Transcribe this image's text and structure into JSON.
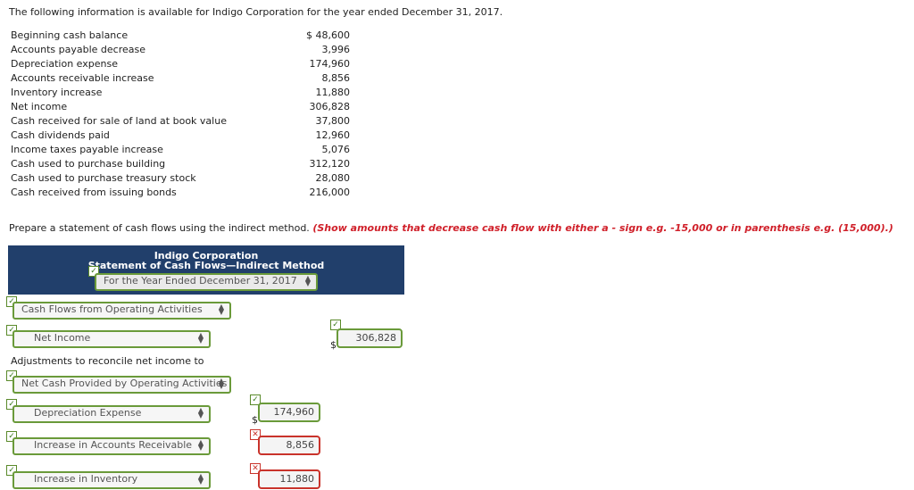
{
  "intro": "The following information is available for Indigo Corporation for the year ended December 31, 2017.",
  "info_rows": [
    {
      "label": "Beginning cash balance",
      "value": "$ 48,600"
    },
    {
      "label": "Accounts payable decrease",
      "value": "3,996"
    },
    {
      "label": "Depreciation expense",
      "value": "174,960"
    },
    {
      "label": "Accounts receivable increase",
      "value": "8,856"
    },
    {
      "label": "Inventory increase",
      "value": "11,880"
    },
    {
      "label": "Net income",
      "value": "306,828"
    },
    {
      "label": "Cash received for sale of land at book value",
      "value": "37,800"
    },
    {
      "label": "Cash dividends paid",
      "value": "12,960"
    },
    {
      "label": "Income taxes payable increase",
      "value": "5,076"
    },
    {
      "label": "Cash used to purchase building",
      "value": "312,120"
    },
    {
      "label": "Cash used to purchase treasury stock",
      "value": "28,080"
    },
    {
      "label": "Cash received from issuing bonds",
      "value": "216,000"
    }
  ],
  "prepare": {
    "text": "Prepare a statement of cash flows using the indirect method.",
    "note": "(Show amounts that decrease cash flow with either a - sign e.g. -15,000 or in parenthesis e.g. (15,000).)"
  },
  "header": {
    "company": "Indigo Corporation",
    "title": "Statement of Cash Flows—Indirect Method",
    "period": "For the Year Ended December 31, 2017"
  },
  "form": {
    "operating_section": "Cash Flows from Operating Activities",
    "net_income_select": "Net Income",
    "net_income_amount": "306,828",
    "adjustments_label": "Adjustments to reconcile net income to",
    "net_cash_select": "Net Cash Provided by Operating Activities",
    "depreciation_select": "Depreciation Expense",
    "depreciation_amount": "174,960",
    "ar_select": "Increase in Accounts Receivable",
    "ar_amount": "8,856",
    "inventory_select": "Increase in Inventory",
    "inventory_amount": "11,880",
    "dollar_sign": "$",
    "check_ok": "✓",
    "check_bad": "✕"
  },
  "colors": {
    "header_bg": "#213f6b",
    "note": "#d0202a",
    "correct": "#6a9a3a",
    "incorrect": "#c9332b"
  }
}
